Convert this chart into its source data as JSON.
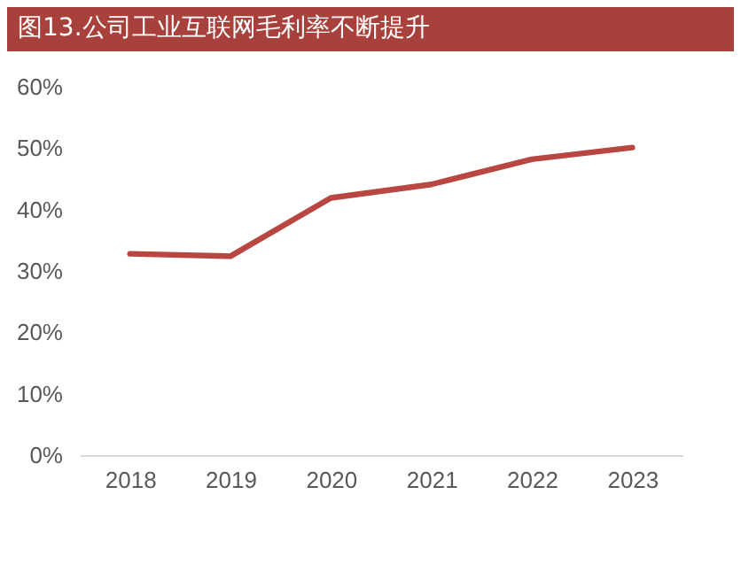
{
  "chart_data": {
    "type": "line",
    "title": "图13.公司工业互联网毛利率不断提升",
    "categories": [
      "2018",
      "2019",
      "2020",
      "2021",
      "2022",
      "2023"
    ],
    "series": [
      {
        "color": "#b84641",
        "values": [
          32.8,
          32.4,
          41.9,
          44.1,
          48.2,
          50.1
        ]
      }
    ],
    "ylim": [
      0,
      60
    ],
    "yticks": [
      {
        "value": 0,
        "label": "0%"
      },
      {
        "value": 10,
        "label": "10%"
      },
      {
        "value": 20,
        "label": "20%"
      },
      {
        "value": 30,
        "label": "30%"
      },
      {
        "value": 40,
        "label": "40%"
      },
      {
        "value": 50,
        "label": "50%"
      },
      {
        "value": 60,
        "label": "60%"
      }
    ],
    "marker": "none",
    "line_style": "solid"
  }
}
